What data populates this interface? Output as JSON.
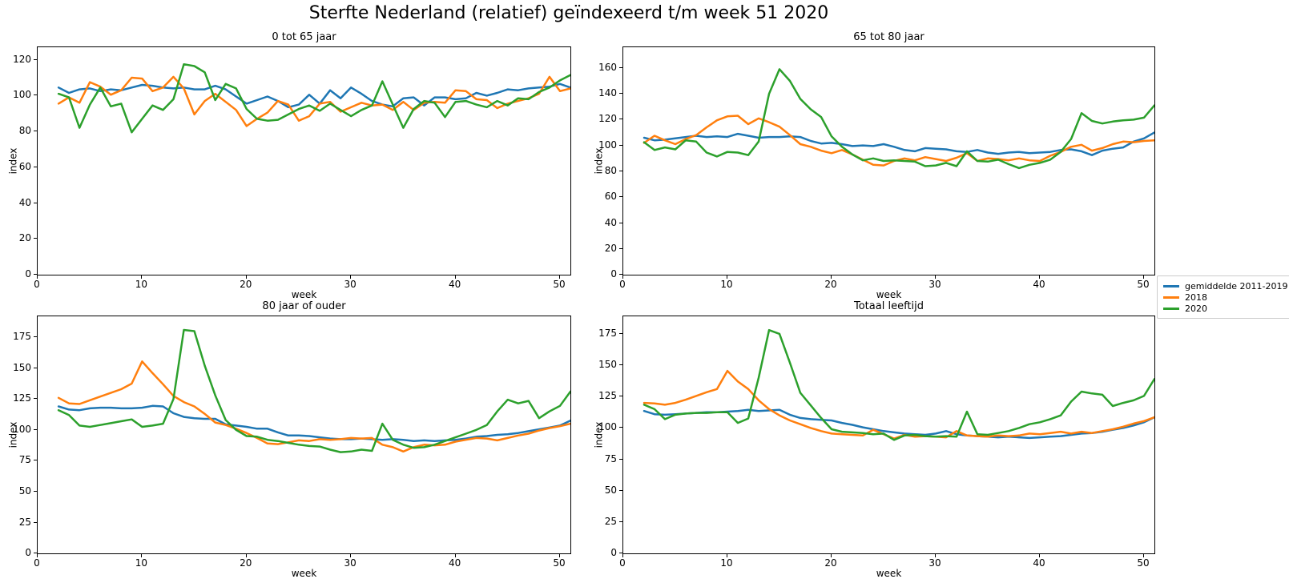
{
  "figure_title": "Sterfte Nederland (relatief) geïndexeerd t/m week 51 2020",
  "legend": {
    "entries": [
      {
        "label": "gemiddelde 2011-2019",
        "color": "#1f77b4"
      },
      {
        "label": "2018",
        "color": "#ff7f0e"
      },
      {
        "label": "2020",
        "color": "#2ca02c"
      }
    ]
  },
  "chart_data": {
    "type": "line",
    "x_label": "week",
    "y_label": "index",
    "x_weeks_start": 2,
    "x_weeks_end": 51,
    "xticks": [
      0,
      10,
      20,
      30,
      40,
      50
    ],
    "xlim": [
      0,
      51
    ],
    "grid": false,
    "legend_position": "right-of-figure",
    "subplots": [
      {
        "title": "0 tot 65 jaar",
        "ylim": [
          0,
          127
        ],
        "yticks": [
          0,
          20,
          40,
          60,
          80,
          100,
          120
        ],
        "series": [
          {
            "name": "gemiddelde 2011-2019",
            "color": "#1f77b4",
            "values": [
              104.5,
              101.5,
              103.5,
              104,
              102.5,
              103.5,
              103,
              104.5,
              106,
              105.5,
              104.5,
              104,
              104.5,
              103.5,
              103.5,
              105.5,
              103.5,
              99.5,
              95.5,
              97.5,
              99.5,
              97,
              93.5,
              95,
              100.5,
              95.5,
              103,
              98.5,
              104.5,
              101,
              97,
              95,
              94,
              98.5,
              99,
              94.5,
              99,
              99,
              98,
              98.5,
              101.5,
              100,
              101.5,
              103.5,
              103,
              104,
              104.5,
              105,
              106.5,
              104.5
            ]
          },
          {
            "name": "2018",
            "color": "#ff7f0e",
            "values": [
              95.5,
              99,
              96,
              107.5,
              105,
              100.5,
              103,
              110,
              109.5,
              102.5,
              104.5,
              110.5,
              104,
              89.5,
              97,
              101,
              96.5,
              92,
              83,
              87,
              90.5,
              97,
              95,
              86,
              88.5,
              95.5,
              96.5,
              91,
              93.5,
              96,
              94.5,
              95,
              92,
              96.5,
              92,
              96,
              96.5,
              96,
              103,
              102.5,
              98,
              97.5,
              93,
              95.5,
              97,
              98.5,
              101,
              110.5,
              102.5,
              104
            ]
          },
          {
            "name": "2020",
            "color": "#2ca02c",
            "values": [
              101,
              99,
              82,
              95,
              104.5,
              94,
              95.5,
              79.5,
              87,
              94.5,
              92,
              98,
              117.5,
              116.5,
              113,
              97.5,
              106.5,
              104,
              92.5,
              87,
              86,
              86.5,
              89.5,
              92.5,
              94.5,
              91.5,
              95.5,
              92,
              88.5,
              92,
              94.5,
              108,
              95,
              82,
              92.5,
              97,
              96,
              88,
              96.5,
              97,
              95,
              93.5,
              97,
              94.5,
              98.5,
              98,
              102,
              104.5,
              108.5,
              111.5
            ]
          }
        ]
      },
      {
        "title": "65 tot 80 jaar",
        "ylim": [
          0,
          176
        ],
        "yticks": [
          0,
          20,
          40,
          60,
          80,
          100,
          120,
          140,
          160
        ],
        "series": [
          {
            "name": "gemiddelde 2011-2019",
            "color": "#1f77b4",
            "values": [
              106,
              104,
              104.5,
              105.5,
              106.5,
              107.5,
              106.5,
              107,
              106.5,
              109,
              107.5,
              106,
              106.5,
              106.5,
              107,
              106.5,
              103.5,
              101.5,
              102,
              101,
              99.5,
              100,
              99.5,
              101,
              99,
              96.5,
              95.5,
              98,
              97.5,
              97,
              95.5,
              95,
              96.5,
              94.5,
              93.5,
              94.5,
              95,
              94,
              94.5,
              95,
              96.5,
              97,
              95.5,
              92.5,
              96,
              97.5,
              98.5,
              103,
              105.5,
              110
            ]
          },
          {
            "name": "2018",
            "color": "#ff7f0e",
            "values": [
              102,
              107.5,
              104,
              101,
              105,
              108,
              114,
              119.5,
              122.5,
              123,
              116.5,
              121,
              118,
              114.5,
              108,
              101,
              99,
              96,
              94,
              96.5,
              93,
              89,
              85,
              84.5,
              88,
              90,
              88.5,
              91,
              89.5,
              88,
              90.5,
              94,
              88,
              90,
              89.5,
              88.5,
              90,
              88.5,
              88,
              92,
              95,
              99,
              100.5,
              96,
              98,
              101,
              103,
              102.5,
              103.5,
              104
            ]
          },
          {
            "name": "2020",
            "color": "#2ca02c",
            "values": [
              102.5,
              96.5,
              98.5,
              97,
              104,
              103,
              94.5,
              91.5,
              95,
              94.5,
              92.5,
              103,
              140,
              159,
              150,
              136,
              128,
              122,
              107,
              99,
              93,
              88.5,
              90,
              88,
              88.5,
              88,
              87.5,
              84,
              84.5,
              86.5,
              84,
              95.5,
              88,
              87.5,
              89,
              85.5,
              82.5,
              85,
              86.5,
              89,
              95,
              105,
              125,
              119,
              117,
              118.5,
              119.5,
              120,
              121.5,
              131
            ]
          }
        ]
      },
      {
        "title": "80 jaar of ouder",
        "ylim": [
          0,
          192
        ],
        "yticks": [
          0,
          25,
          50,
          75,
          100,
          125,
          150,
          175
        ],
        "series": [
          {
            "name": "gemiddelde 2011-2019",
            "color": "#1f77b4",
            "values": [
              119,
              116.5,
              116,
              117.5,
              118,
              118,
              117.5,
              117.5,
              118,
              119.5,
              119,
              113.5,
              110.5,
              109.5,
              109,
              109,
              104.5,
              103.5,
              102.5,
              101,
              101,
              98,
              95.5,
              95.5,
              95,
              94,
              93,
              92.5,
              92.5,
              93,
              92.5,
              92,
              92.5,
              92,
              91,
              91.5,
              91,
              91.5,
              92,
              93,
              94.5,
              95,
              96,
              96.5,
              97.5,
              99,
              100.5,
              102,
              103.5,
              107.5
            ]
          },
          {
            "name": "2018",
            "color": "#ff7f0e",
            "values": [
              126,
              121.5,
              121,
              124,
              127,
              130,
              133,
              137.5,
              155.5,
              146,
              137,
              127.5,
              122.5,
              119,
              113,
              106,
              104,
              101,
              97.5,
              93.5,
              89,
              88.5,
              90,
              91.5,
              91,
              92.5,
              92,
              92.5,
              93.5,
              93,
              93.5,
              88,
              86,
              82.5,
              86,
              88,
              87.5,
              88,
              90.5,
              92,
              93.5,
              93,
              91.5,
              93.5,
              95.5,
              97,
              99.5,
              101.5,
              103,
              105
            ]
          },
          {
            "name": "2020",
            "color": "#2ca02c",
            "values": [
              116,
              112,
              103.5,
              102.5,
              104,
              105.5,
              107,
              108.5,
              102.5,
              103.5,
              105,
              125,
              181,
              180,
              152,
              128,
              108,
              100,
              95,
              94.5,
              92,
              91,
              89.5,
              88,
              87,
              86.5,
              84,
              82,
              82.5,
              84,
              83,
              105,
              92,
              88,
              85.5,
              86,
              88,
              91,
              94,
              97,
              100,
              104,
              115,
              124.5,
              121.5,
              123.5,
              109.5,
              115,
              119.5,
              131
            ]
          }
        ]
      },
      {
        "title": "Totaal leeftijd",
        "ylim": [
          0,
          189
        ],
        "yticks": [
          0,
          25,
          50,
          75,
          100,
          125,
          150,
          175
        ],
        "series": [
          {
            "name": "gemiddelde 2011-2019",
            "color": "#1f77b4",
            "values": [
              113.5,
              111,
              110.5,
              111,
              111.5,
              112,
              112.5,
              112.5,
              113,
              113.5,
              114.5,
              113.5,
              114,
              114.5,
              110.5,
              108,
              107,
              106.5,
              106,
              104,
              102.5,
              100.5,
              99,
              97.5,
              96.5,
              95.5,
              95,
              94.5,
              95.5,
              97.5,
              95,
              94,
              93.5,
              93,
              92.5,
              93,
              92.5,
              92,
              92.5,
              93,
              93.5,
              94.5,
              95.5,
              96,
              97,
              98.5,
              100,
              102,
              104.5,
              108.5
            ]
          },
          {
            "name": "2018",
            "color": "#ff7f0e",
            "values": [
              120,
              119.5,
              118.5,
              120,
              122.5,
              125.5,
              128.5,
              131,
              145.5,
              137,
              131,
              122,
              115,
              110,
              106,
              103,
              100,
              97.5,
              95.5,
              95,
              94.5,
              94,
              98.5,
              95,
              91.5,
              94.5,
              93,
              93.5,
              93,
              92.5,
              97.5,
              94,
              93.5,
              93,
              94,
              93.5,
              94,
              95.5,
              95,
              96,
              97,
              95.5,
              97,
              96,
              97.5,
              99,
              101,
              103.5,
              105.5,
              108.5
            ]
          },
          {
            "name": "2020",
            "color": "#2ca02c",
            "values": [
              118.5,
              115,
              107,
              110.5,
              111.5,
              112,
              112,
              112.5,
              112.5,
              104,
              107.5,
              140,
              178,
              175,
              152,
              128,
              118,
              108,
              99,
              97,
              96.5,
              96,
              95,
              95.5,
              90.5,
              94,
              94.5,
              93.5,
              93,
              93.5,
              93,
              113,
              95,
              94.5,
              96,
              97.5,
              100,
              103,
              104.5,
              107,
              110,
              121,
              129,
              127.5,
              126.5,
              117.5,
              120,
              122,
              125.5,
              139
            ]
          }
        ]
      }
    ]
  }
}
